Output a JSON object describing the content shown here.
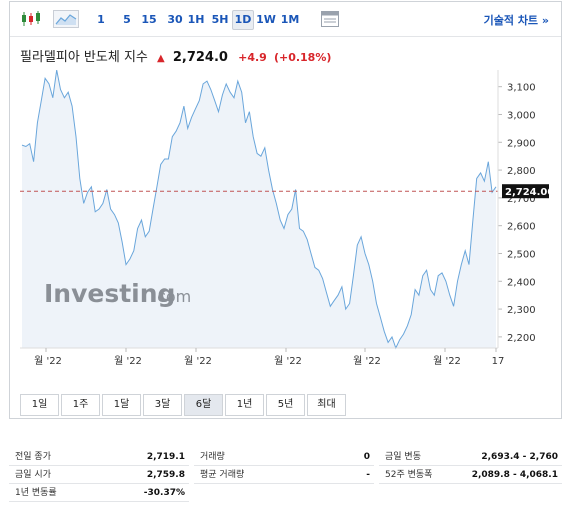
{
  "toolbar": {
    "timeframes": [
      "1",
      "5",
      "15",
      "30",
      "1H",
      "5H",
      "1D",
      "1W",
      "1M"
    ],
    "active_timeframe": "1D",
    "tech_chart_label": "기술적 차트 »"
  },
  "instrument": {
    "name": "필라델피아 반도체 지수",
    "price": "2,724.0",
    "change": "+4.9",
    "change_pct": "(+0.18%)"
  },
  "ranges": {
    "buttons": [
      "1일",
      "1주",
      "1달",
      "3달",
      "6달",
      "1년",
      "5년",
      "최대"
    ],
    "active": "6달"
  },
  "watermark": {
    "main": "Investing",
    "suffix": ".com"
  },
  "chart_data": {
    "type": "area",
    "title": "필라델피아 반도체 지수",
    "y_ticks": [
      "3,100",
      "3,000",
      "2,900",
      "2,800",
      "2,700",
      "2,600",
      "2,500",
      "2,400",
      "2,300",
      "2,200"
    ],
    "x_tick_labels": [
      "월 '22",
      "월 '22",
      "월 '22",
      "월 '22",
      "월 '22",
      "월 '22",
      "17"
    ],
    "ylim": [
      2160,
      3160
    ],
    "grid": false,
    "current_value": 2724.0,
    "current_value_label": "2,724.00",
    "reference_line": 2724.0,
    "series": [
      {
        "values": [
          2890,
          2885,
          2895,
          2830,
          2970,
          3050,
          3130,
          3110,
          3060,
          3160,
          3090,
          3060,
          3080,
          3030,
          2920,
          2770,
          2680,
          2720,
          2740,
          2650,
          2660,
          2680,
          2730,
          2660,
          2640,
          2610,
          2540,
          2460,
          2480,
          2510,
          2590,
          2620,
          2560,
          2580,
          2660,
          2740,
          2820,
          2840,
          2840,
          2920,
          2940,
          2970,
          3030,
          2950,
          2990,
          3020,
          3050,
          3110,
          3120,
          3090,
          3050,
          3010,
          3070,
          3110,
          3080,
          3060,
          3120,
          3080,
          2970,
          3010,
          2920,
          2860,
          2850,
          2880,
          2800,
          2730,
          2680,
          2620,
          2590,
          2640,
          2660,
          2730,
          2590,
          2580,
          2550,
          2500,
          2450,
          2440,
          2410,
          2360,
          2310,
          2330,
          2350,
          2380,
          2300,
          2320,
          2420,
          2530,
          2560,
          2500,
          2460,
          2400,
          2320,
          2270,
          2220,
          2180,
          2200,
          2160,
          2190,
          2210,
          2240,
          2280,
          2370,
          2350,
          2420,
          2440,
          2370,
          2350,
          2420,
          2430,
          2400,
          2350,
          2310,
          2400,
          2460,
          2510,
          2460,
          2620,
          2770,
          2790,
          2760,
          2830,
          2720,
          2740
        ]
      }
    ]
  },
  "stats": {
    "col1": [
      {
        "label": "전일 종가",
        "value": "2,719.1"
      },
      {
        "label": "금일 시가",
        "value": "2,759.8"
      },
      {
        "label": "1년 변동률",
        "value": "-30.37%"
      }
    ],
    "col2": [
      {
        "label": "거래량",
        "value": "0"
      },
      {
        "label": "평균 거래량",
        "value": "-"
      }
    ],
    "col3": [
      {
        "label": "금일 변동",
        "value": "2,693.4 - 2,760"
      },
      {
        "label": "52주 변동폭",
        "value": "2,089.8 - 4,068.1"
      }
    ]
  },
  "colors": {
    "line": "#6aa6db",
    "area": "#eef3f9",
    "ref_line": "#c05555",
    "accent": "#1a56b8",
    "up": "#d8262b"
  }
}
